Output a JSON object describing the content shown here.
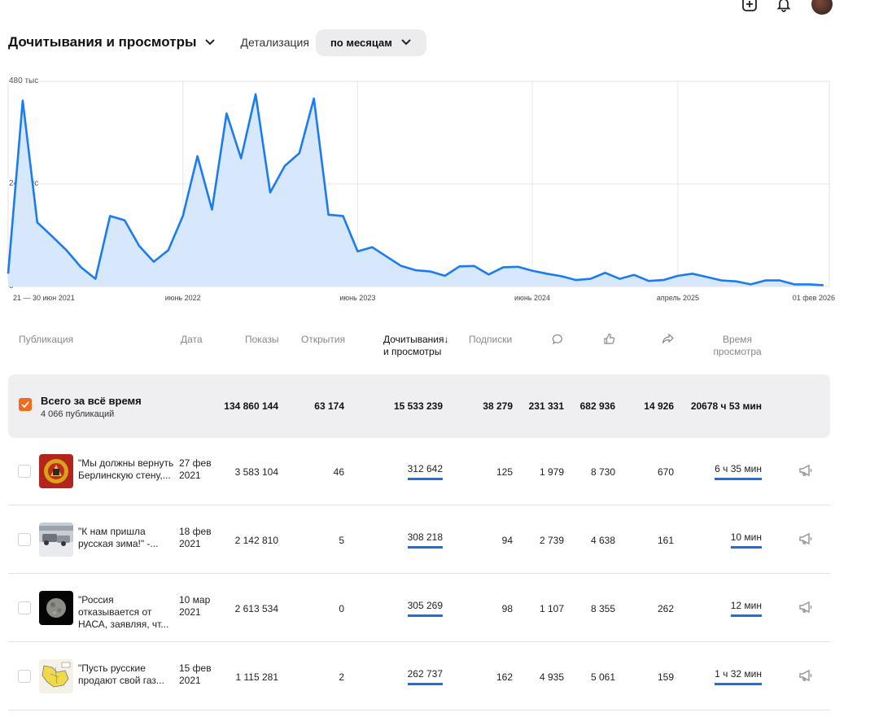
{
  "header": {
    "title": "Дочитывания и просмотры",
    "detail_label": "Детализация",
    "period": "по месяцам"
  },
  "chart_data": {
    "type": "area",
    "yticks": [
      "480 тыс",
      "240 тыс",
      "0"
    ],
    "ylim": [
      0,
      480000
    ],
    "xticks": [
      {
        "label": "21 — 30 июн 2021",
        "x": 0
      },
      {
        "label": "июнь 2022",
        "x": 12
      },
      {
        "label": "июнь 2023",
        "x": 24
      },
      {
        "label": "июнь 2024",
        "x": 36
      },
      {
        "label": "апрель 2025",
        "x": 46
      },
      {
        "label": "01 фев 2026",
        "x": 56
      }
    ],
    "x_range": [
      0,
      56.4
    ],
    "values": [
      30000,
      435000,
      150000,
      118000,
      85000,
      45000,
      18000,
      165000,
      155000,
      95000,
      58000,
      85000,
      165000,
      305000,
      180000,
      405000,
      300000,
      450000,
      220000,
      282000,
      312000,
      440000,
      168000,
      165000,
      82000,
      92000,
      70000,
      48000,
      38000,
      35000,
      25000,
      47000,
      48000,
      28000,
      45000,
      46000,
      37000,
      30000,
      24000,
      15000,
      18000,
      32000,
      18000,
      27000,
      13000,
      15000,
      25000,
      30000,
      22000,
      14000,
      12000,
      5000,
      14000,
      14000,
      5000,
      5000,
      3000
    ],
    "grid": true,
    "color": "#1a7bf2",
    "fill": "#d8e8fc"
  },
  "table": {
    "columns": {
      "pub": "Публикация",
      "date": "Дата",
      "shows": "Показы",
      "opens": "Открытия",
      "reads_1": "Дочитывания",
      "reads_2": "и просмотры",
      "subs": "Подписки",
      "time_1": "Время",
      "time_2": "просмотра"
    },
    "total": {
      "title": "Всего за всё время",
      "sub": "4 066 публикаций",
      "shows": "134 860 144",
      "opens": "63 174",
      "reads": "15 533 239",
      "subs": "38 279",
      "comments": "231 331",
      "likes": "682 936",
      "shares": "14 926",
      "time": "20678 ч 53 мин"
    },
    "rows": [
      {
        "title": "\"Мы должны вернуть Берлинскую стену,...",
        "date_1": "27 фев",
        "date_2": "2021",
        "shows": "3 583 104",
        "opens": "46",
        "reads": "312 642",
        "subs": "125",
        "comments": "1 979",
        "likes": "8 730",
        "shares": "670",
        "time": "6 ч 35 мин",
        "thumb": "emblem"
      },
      {
        "title": "\"К нам пришла русская зима!\" -...",
        "date_1": "18 фев",
        "date_2": "2021",
        "shows": "2 142 810",
        "opens": "5",
        "reads": "308 218",
        "subs": "94",
        "comments": "2 739",
        "likes": "4 638",
        "shares": "161",
        "time": "10 мин",
        "thumb": "snow"
      },
      {
        "title": "\"Россия отказывается от НАСА, заявляя, чт...",
        "date_1": "10 мар",
        "date_2": "2021",
        "shows": "2 613 534",
        "opens": "0",
        "reads": "305 269",
        "subs": "98",
        "comments": "1 107",
        "likes": "8 355",
        "shares": "262",
        "time": "12 мин",
        "thumb": "moon"
      },
      {
        "title": "\"Пусть русские продают свой газ...",
        "date_1": "15 фев",
        "date_2": "2021",
        "shows": "1 115 281",
        "opens": "2",
        "reads": "262 737",
        "subs": "162",
        "comments": "4 935",
        "likes": "5 061",
        "shares": "159",
        "time": "1 ч 32 мин",
        "thumb": "map"
      }
    ]
  }
}
